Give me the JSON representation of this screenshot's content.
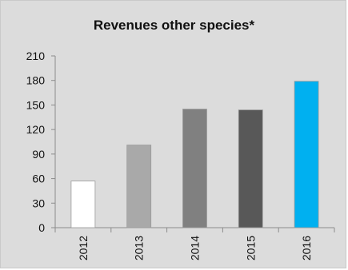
{
  "chart_data": {
    "type": "bar",
    "title": "Revenues other species*",
    "categories": [
      "2012",
      "2013",
      "2014",
      "2015",
      "2016"
    ],
    "values": [
      57,
      101,
      145,
      144,
      179
    ],
    "colors": [
      "#ffffff",
      "#a9a9a9",
      "#808080",
      "#585858",
      "#00b0f0"
    ],
    "ylim": [
      0,
      210
    ],
    "yticks": [
      0,
      30,
      60,
      90,
      120,
      150,
      180,
      210
    ],
    "xlabel": "",
    "ylabel": "",
    "grid": false
  }
}
